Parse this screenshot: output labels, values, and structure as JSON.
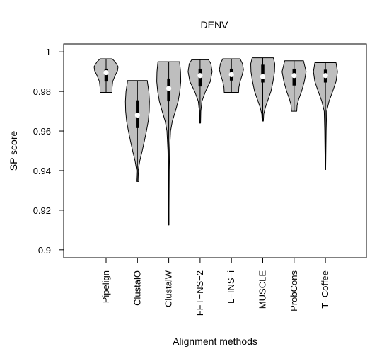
{
  "chart_data": {
    "type": "violin",
    "title": "DENV",
    "xlabel": "Alignment methods",
    "ylabel": "SP score",
    "ylim": [
      0.896,
      1.004
    ],
    "yticks": [
      0.9,
      0.92,
      0.94,
      0.96,
      0.98,
      1
    ],
    "ytick_labels": [
      "0.9",
      "0.92",
      "0.94",
      "0.96",
      "0.98",
      "1"
    ],
    "categories": [
      "Pipelign",
      "ClustalO",
      "ClustalW",
      "FFT−NS−2",
      "L−INS−i",
      "MUSCLE",
      "ProbCons",
      "T−Coffee"
    ],
    "grid": false,
    "colors": {
      "violin_fill": "#bebebe",
      "median": "#ffffff",
      "outline": "#000000"
    },
    "series": [
      {
        "category": "Pipelign",
        "min": 0.9795,
        "max": 0.9965,
        "q1": 0.985,
        "median": 0.9895,
        "q3": 0.9915,
        "density": [
          [
            0.9795,
            0.5
          ],
          [
            0.982,
            0.5
          ],
          [
            0.985,
            0.55
          ],
          [
            0.988,
            0.75
          ],
          [
            0.9905,
            0.95
          ],
          [
            0.9925,
            1.0
          ],
          [
            0.995,
            0.75
          ],
          [
            0.9965,
            0.5
          ]
        ]
      },
      {
        "category": "ClustalO",
        "min": 0.9345,
        "max": 0.9855,
        "q1": 0.9615,
        "median": 0.968,
        "q3": 0.9755,
        "density": [
          [
            0.9345,
            0.1
          ],
          [
            0.937,
            0.08
          ],
          [
            0.94,
            0.06
          ],
          [
            0.945,
            0.2
          ],
          [
            0.95,
            0.4
          ],
          [
            0.955,
            0.58
          ],
          [
            0.96,
            0.75
          ],
          [
            0.965,
            0.9
          ],
          [
            0.97,
            0.98
          ],
          [
            0.975,
            1.0
          ],
          [
            0.98,
            0.95
          ],
          [
            0.984,
            0.85
          ],
          [
            0.9855,
            0.82
          ]
        ]
      },
      {
        "category": "ClustalW",
        "min": 0.9125,
        "max": 0.995,
        "q1": 0.975,
        "median": 0.9815,
        "q3": 0.9865,
        "density": [
          [
            0.9125,
            0.02
          ],
          [
            0.92,
            0.02
          ],
          [
            0.93,
            0.03
          ],
          [
            0.94,
            0.04
          ],
          [
            0.95,
            0.07
          ],
          [
            0.96,
            0.15
          ],
          [
            0.965,
            0.3
          ],
          [
            0.97,
            0.55
          ],
          [
            0.975,
            0.78
          ],
          [
            0.98,
            0.92
          ],
          [
            0.985,
            1.0
          ],
          [
            0.99,
            0.98
          ],
          [
            0.995,
            0.9
          ]
        ]
      },
      {
        "category": "FFT−NS−2",
        "min": 0.964,
        "max": 0.996,
        "q1": 0.9825,
        "median": 0.988,
        "q3": 0.9915,
        "density": [
          [
            0.964,
            0.04
          ],
          [
            0.97,
            0.06
          ],
          [
            0.975,
            0.15
          ],
          [
            0.98,
            0.45
          ],
          [
            0.985,
            0.85
          ],
          [
            0.99,
            1.0
          ],
          [
            0.994,
            0.9
          ],
          [
            0.996,
            0.7
          ]
        ]
      },
      {
        "category": "L−INS−i",
        "min": 0.9795,
        "max": 0.9965,
        "q1": 0.9855,
        "median": 0.9885,
        "q3": 0.9915,
        "density": [
          [
            0.9795,
            0.6
          ],
          [
            0.982,
            0.62
          ],
          [
            0.985,
            0.72
          ],
          [
            0.988,
            0.88
          ],
          [
            0.991,
            1.0
          ],
          [
            0.994,
            0.92
          ],
          [
            0.9965,
            0.72
          ]
        ]
      },
      {
        "category": "MUSCLE",
        "min": 0.965,
        "max": 0.997,
        "q1": 0.9845,
        "median": 0.9875,
        "q3": 0.9935,
        "density": [
          [
            0.965,
            0.05
          ],
          [
            0.9685,
            0.08
          ],
          [
            0.972,
            0.22
          ],
          [
            0.976,
            0.45
          ],
          [
            0.98,
            0.68
          ],
          [
            0.985,
            0.85
          ],
          [
            0.99,
            0.98
          ],
          [
            0.994,
            1.0
          ],
          [
            0.997,
            0.88
          ]
        ]
      },
      {
        "category": "ProbCons",
        "min": 0.97,
        "max": 0.9955,
        "q1": 0.983,
        "median": 0.988,
        "q3": 0.9915,
        "density": [
          [
            0.97,
            0.22
          ],
          [
            0.973,
            0.25
          ],
          [
            0.976,
            0.38
          ],
          [
            0.98,
            0.62
          ],
          [
            0.985,
            0.85
          ],
          [
            0.99,
            1.0
          ],
          [
            0.9955,
            0.78
          ]
        ]
      },
      {
        "category": "T−Coffee",
        "min": 0.9405,
        "max": 0.9945,
        "q1": 0.9845,
        "median": 0.988,
        "q3": 0.991,
        "density": [
          [
            0.9405,
            0.02
          ],
          [
            0.945,
            0.03
          ],
          [
            0.95,
            0.04
          ],
          [
            0.96,
            0.06
          ],
          [
            0.97,
            0.1
          ],
          [
            0.975,
            0.3
          ],
          [
            0.98,
            0.6
          ],
          [
            0.985,
            0.88
          ],
          [
            0.99,
            1.0
          ],
          [
            0.9945,
            0.88
          ]
        ]
      }
    ]
  }
}
